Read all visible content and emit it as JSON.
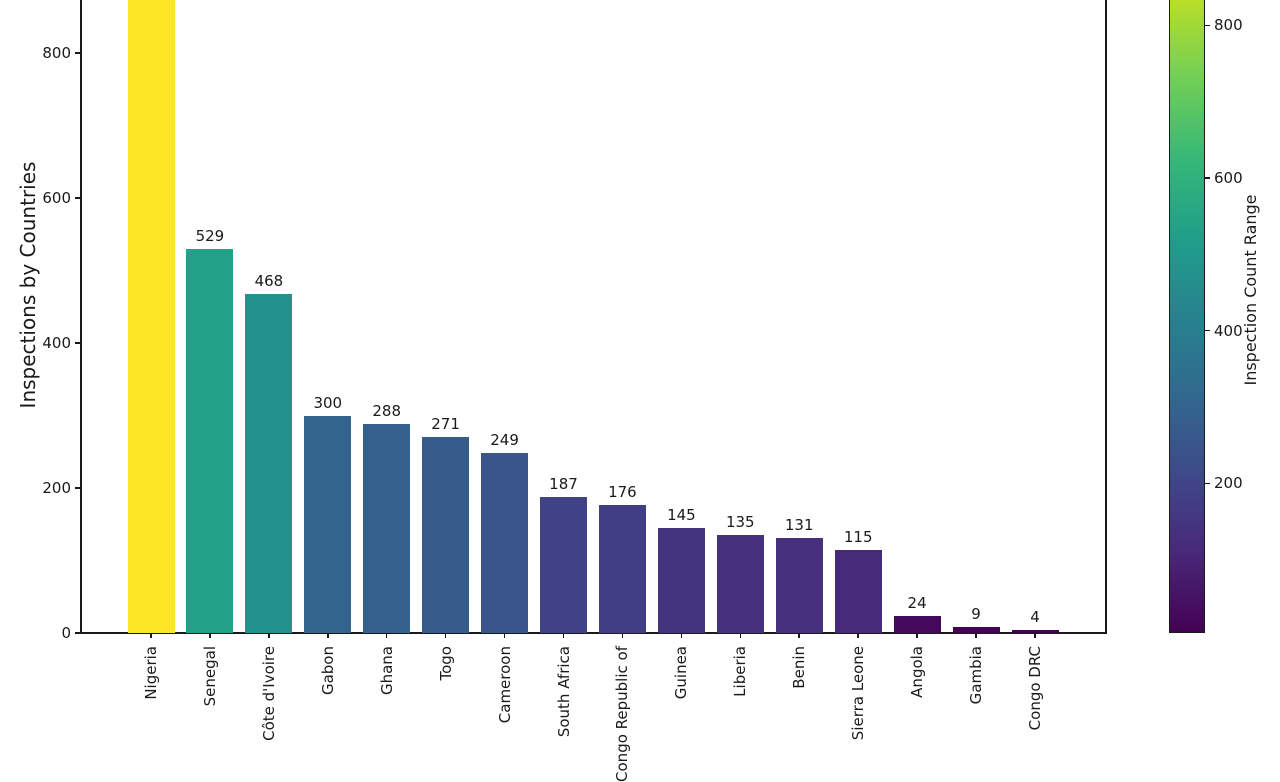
{
  "figure": {
    "kind": "matplotlib-bar-chart-screenshot",
    "background": "#ffffff",
    "note": "Figure is cropped: tallest bar (Nigeria), its value label, the axes top and the colorbar top extend beyond the top edge; rotated x tick labels are clipped by the bottom edge. Nigeria value estimated ~930 from colormap scale."
  },
  "chart_data": {
    "type": "bar",
    "title": "",
    "xlabel": "",
    "ylabel": "Inspections by Countries",
    "categories": [
      "Nigeria",
      "Senegal",
      "Côte d'Ivoire",
      "Gabon",
      "Ghana",
      "Togo",
      "Cameroon",
      "South Africa",
      "Congo Republic of",
      "Guinea",
      "Liberia",
      "Benin",
      "Sierra Leone",
      "Angola",
      "Gambia",
      "Congo DRC"
    ],
    "values": [
      930,
      529,
      468,
      300,
      288,
      271,
      249,
      187,
      176,
      145,
      135,
      131,
      115,
      24,
      9,
      4
    ],
    "bar_labels": [
      "",
      "529",
      "468",
      "300",
      "288",
      "271",
      "249",
      "187",
      "176",
      "145",
      "135",
      "131",
      "115",
      "24",
      "9",
      "4"
    ],
    "bar_colors": [
      "#fde725",
      "#21a187",
      "#22908b",
      "#33648d",
      "#34618d",
      "#365c8c",
      "#39558b",
      "#404285",
      "#413e83",
      "#44347e",
      "#45317d",
      "#46307c",
      "#472b7b",
      "#44095b",
      "#440356",
      "#440154"
    ],
    "yticks": [
      0,
      200,
      400,
      600,
      800
    ],
    "ytick_labels": [
      "0",
      "200",
      "400",
      "600",
      "800"
    ],
    "grid": false,
    "colorbar": {
      "label": "Inspection Count Range",
      "ticks": [
        200,
        400,
        600,
        800
      ],
      "tick_labels": [
        "200",
        "400",
        "600",
        "800"
      ],
      "vmin": 4,
      "vmax": 930,
      "colormap": "viridis",
      "gradient_stops_bottom_to_top": [
        "#440154",
        "#482878",
        "#3e4989",
        "#31688e",
        "#26828e",
        "#1f9e89",
        "#35b779",
        "#6ece58",
        "#b5de2b",
        "#fde725"
      ]
    }
  }
}
